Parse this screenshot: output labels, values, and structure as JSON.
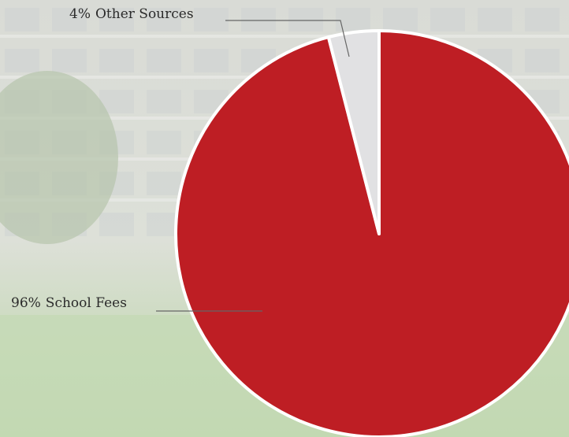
{
  "chart_data": {
    "type": "pie",
    "categories": [
      "School Fees",
      "Other Sources"
    ],
    "values": [
      96,
      4
    ],
    "value_labels": [
      "96%",
      "4%"
    ],
    "colors": [
      "#be1e24",
      "#e1e1e3"
    ]
  }
}
